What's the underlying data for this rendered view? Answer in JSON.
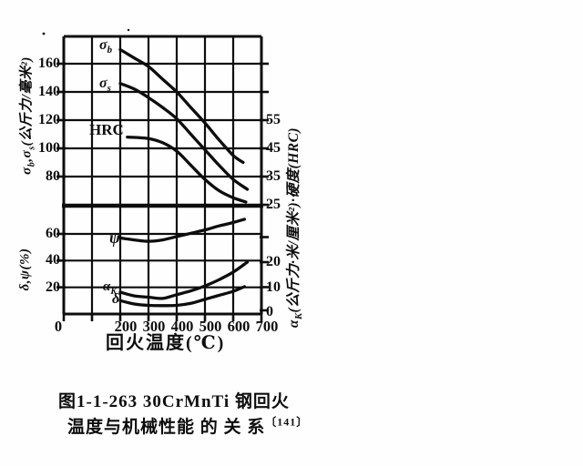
{
  "colors": {
    "background": "#fefefe",
    "ink": "#0d0d0d"
  },
  "caption": {
    "line1": "图1-1-263  30CrMnTi 钢回火",
    "line2": "温度与机械性能 的 关 系",
    "cite": "〔141〕"
  },
  "chart_data": {
    "type": "line",
    "title": "30CrMnTi 钢回火温度与机械性能的关系",
    "x_axis": {
      "label": "回火温度(℃)",
      "tick_labels": [
        "0",
        "200",
        "300",
        "400",
        "500",
        "600",
        "700"
      ],
      "tick_values": [
        0,
        200,
        300,
        400,
        500,
        600,
        700
      ],
      "range": [
        0,
        700
      ],
      "gridline_step": 100
    },
    "right_title_rich": [
      [
        "α",
        ""
      ],
      [
        "K",
        "sub"
      ],
      [
        "(公斤力·米/厘米²)·硬度(HRC)",
        ""
      ]
    ],
    "panels": [
      {
        "name": "strength-hardness",
        "left_axis": {
          "rich": [
            [
              "σ",
              ""
            ],
            [
              "b",
              "sub"
            ],
            [
              ",σ",
              ""
            ],
            [
              "s",
              "sub"
            ],
            [
              "(公斤力/毫米²)",
              ""
            ]
          ],
          "tick_labels": [
            "160",
            "140",
            "120",
            "100",
            "80"
          ],
          "tick_values": [
            160,
            140,
            120,
            100,
            80
          ],
          "range": [
            60,
            180
          ]
        },
        "right_axis": {
          "name": "硬度(HRC)",
          "tick_labels": [
            "55",
            "45",
            "35",
            "25"
          ],
          "tick_values": [
            55,
            45,
            35,
            25
          ],
          "range": [
            25,
            65
          ]
        },
        "series": [
          {
            "slug": "sigma-b",
            "name": "σb",
            "axis": "left",
            "label_rich": [
              [
                "σ",
                ""
              ],
              [
                "b",
                "sub"
              ]
            ],
            "points": [
              [
                200,
                170
              ],
              [
                250,
                164
              ],
              [
                300,
                158
              ],
              [
                350,
                149
              ],
              [
                400,
                140
              ],
              [
                450,
                129
              ],
              [
                500,
                118
              ],
              [
                550,
                106
              ],
              [
                600,
                95
              ],
              [
                635,
                90
              ]
            ]
          },
          {
            "slug": "sigma-s",
            "name": "σs",
            "axis": "left",
            "label_rich": [
              [
                "σ",
                ""
              ],
              [
                "s",
                "sub"
              ]
            ],
            "points": [
              [
                200,
                146
              ],
              [
                250,
                142
              ],
              [
                300,
                136
              ],
              [
                350,
                129
              ],
              [
                400,
                121
              ],
              [
                450,
                110
              ],
              [
                500,
                99
              ],
              [
                550,
                88
              ],
              [
                600,
                78
              ],
              [
                650,
                71
              ]
            ]
          },
          {
            "slug": "hrc",
            "name": "HRC",
            "axis": "right",
            "label_rich": [
              [
                "HRC",
                ""
              ]
            ],
            "points": [
              [
                225,
                49
              ],
              [
                300,
                48.5
              ],
              [
                350,
                47
              ],
              [
                400,
                44
              ],
              [
                450,
                39
              ],
              [
                500,
                34
              ],
              [
                550,
                30
              ],
              [
                600,
                27.5
              ],
              [
                645,
                26
              ]
            ]
          }
        ]
      },
      {
        "name": "ductility-toughness",
        "left_axis": {
          "rich": [
            [
              "δ,ψ(%)",
              ""
            ]
          ],
          "tick_labels": [
            "60",
            "40",
            "20"
          ],
          "tick_values": [
            60,
            40,
            20
          ],
          "range": [
            0,
            80
          ]
        },
        "right_axis": {
          "name": "αK(公斤力·米/厘米²)",
          "tick_labels": [
            "20",
            "10",
            "0"
          ],
          "tick_values": [
            20,
            10,
            0
          ],
          "range": [
            0,
            30
          ]
        },
        "series": [
          {
            "slug": "psi",
            "name": "ψ",
            "axis": "left",
            "label_rich": [
              [
                "ψ",
                ""
              ]
            ],
            "points": [
              [
                200,
                57
              ],
              [
                250,
                55.5
              ],
              [
                300,
                54.5
              ],
              [
                350,
                55.5
              ],
              [
                400,
                58
              ],
              [
                450,
                60.5
              ],
              [
                500,
                63
              ],
              [
                550,
                66
              ],
              [
                600,
                68.5
              ],
              [
                640,
                71
              ]
            ]
          },
          {
            "slug": "alpha-k",
            "name": "αK",
            "axis": "right",
            "label_rich": [
              [
                "α",
                ""
              ],
              [
                "K",
                "sub"
              ]
            ],
            "points": [
              [
                200,
                8
              ],
              [
                250,
                6.5
              ],
              [
                300,
                6
              ],
              [
                350,
                5.5
              ],
              [
                400,
                7
              ],
              [
                450,
                8.5
              ],
              [
                500,
                10.5
              ],
              [
                550,
                13
              ],
              [
                600,
                16
              ],
              [
                650,
                20
              ]
            ]
          },
          {
            "slug": "delta",
            "name": "δ",
            "axis": "left",
            "label_rich": [
              [
                "δ",
                ""
              ]
            ],
            "points": [
              [
                200,
                10
              ],
              [
                250,
                7.5
              ],
              [
                300,
                6.5
              ],
              [
                350,
                6.3
              ],
              [
                400,
                6.5
              ],
              [
                450,
                8
              ],
              [
                500,
                11
              ],
              [
                550,
                14
              ],
              [
                600,
                17
              ],
              [
                640,
                20.5
              ]
            ]
          }
        ]
      }
    ]
  }
}
